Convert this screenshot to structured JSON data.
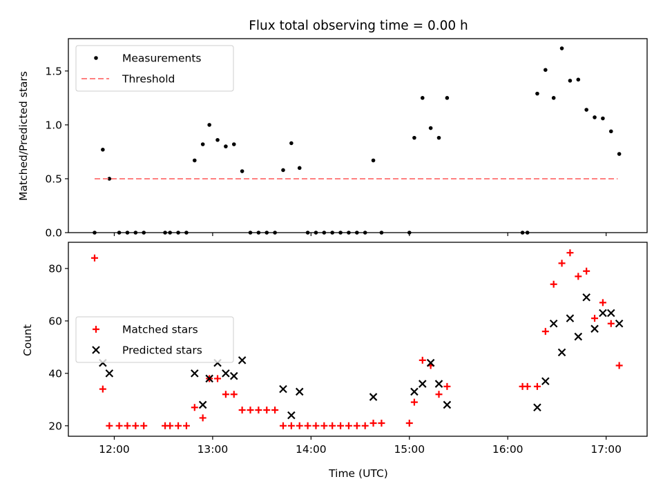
{
  "chart_data": [
    {
      "type": "scatter",
      "title": "Flux total observing time = 0.00 h",
      "xlabel": "",
      "ylabel": "Matched/Predicted stars",
      "xlim": [
        "11:32",
        "17:25"
      ],
      "ylim": [
        0,
        1.8
      ],
      "y_ticks": [
        {
          "value": 0.0,
          "label": "0.0"
        },
        {
          "value": 0.5,
          "label": "0.5"
        },
        {
          "value": 1.0,
          "label": "1.0"
        },
        {
          "value": 1.5,
          "label": "1.5"
        }
      ],
      "x_ticks": [
        {
          "value": "12:00",
          "label": ""
        },
        {
          "value": "13:00",
          "label": ""
        },
        {
          "value": "14:00",
          "label": ""
        },
        {
          "value": "15:00",
          "label": ""
        },
        {
          "value": "16:00",
          "label": ""
        },
        {
          "value": "17:00",
          "label": ""
        }
      ],
      "grid": false,
      "legend": {
        "position": "top-left",
        "entries": [
          {
            "label": "Measurements",
            "marker": "dot",
            "color": "#000000"
          },
          {
            "label": "Threshold",
            "marker": "dashed-line",
            "color": "#ff7f7f"
          }
        ]
      },
      "series": [
        {
          "name": "Measurements",
          "style": "dot",
          "color": "#000000",
          "points": [
            {
              "x": "11:48",
              "y": 0.0
            },
            {
              "x": "11:53",
              "y": 0.77
            },
            {
              "x": "11:57",
              "y": 0.5
            },
            {
              "x": "12:03",
              "y": 0.0
            },
            {
              "x": "12:08",
              "y": 0.0
            },
            {
              "x": "12:13",
              "y": 0.0
            },
            {
              "x": "12:18",
              "y": 0.0
            },
            {
              "x": "12:31",
              "y": 0.0
            },
            {
              "x": "12:34",
              "y": 0.0
            },
            {
              "x": "12:39",
              "y": 0.0
            },
            {
              "x": "12:44",
              "y": 0.0
            },
            {
              "x": "12:49",
              "y": 0.67
            },
            {
              "x": "12:54",
              "y": 0.82
            },
            {
              "x": "12:58",
              "y": 1.0
            },
            {
              "x": "13:03",
              "y": 0.86
            },
            {
              "x": "13:08",
              "y": 0.8
            },
            {
              "x": "13:13",
              "y": 0.82
            },
            {
              "x": "13:18",
              "y": 0.57
            },
            {
              "x": "13:23",
              "y": 0.0
            },
            {
              "x": "13:28",
              "y": 0.0
            },
            {
              "x": "13:33",
              "y": 0.0
            },
            {
              "x": "13:38",
              "y": 0.0
            },
            {
              "x": "13:43",
              "y": 0.58
            },
            {
              "x": "13:48",
              "y": 0.83
            },
            {
              "x": "13:53",
              "y": 0.6
            },
            {
              "x": "13:58",
              "y": 0.0
            },
            {
              "x": "14:03",
              "y": 0.0
            },
            {
              "x": "14:08",
              "y": 0.0
            },
            {
              "x": "14:13",
              "y": 0.0
            },
            {
              "x": "14:18",
              "y": 0.0
            },
            {
              "x": "14:23",
              "y": 0.0
            },
            {
              "x": "14:28",
              "y": 0.0
            },
            {
              "x": "14:33",
              "y": 0.0
            },
            {
              "x": "14:38",
              "y": 0.67
            },
            {
              "x": "14:43",
              "y": 0.0
            },
            {
              "x": "15:00",
              "y": 0.0
            },
            {
              "x": "15:03",
              "y": 0.88
            },
            {
              "x": "15:08",
              "y": 1.25
            },
            {
              "x": "15:13",
              "y": 0.97
            },
            {
              "x": "15:18",
              "y": 0.88
            },
            {
              "x": "15:23",
              "y": 1.25
            },
            {
              "x": "16:09",
              "y": 0.0
            },
            {
              "x": "16:12",
              "y": 0.0
            },
            {
              "x": "16:18",
              "y": 1.29
            },
            {
              "x": "16:23",
              "y": 1.51
            },
            {
              "x": "16:28",
              "y": 1.25
            },
            {
              "x": "16:33",
              "y": 1.71
            },
            {
              "x": "16:38",
              "y": 1.41
            },
            {
              "x": "16:43",
              "y": 1.42
            },
            {
              "x": "16:48",
              "y": 1.14
            },
            {
              "x": "16:53",
              "y": 1.07
            },
            {
              "x": "16:58",
              "y": 1.06
            },
            {
              "x": "17:03",
              "y": 0.94
            },
            {
              "x": "17:08",
              "y": 0.73
            }
          ]
        },
        {
          "name": "Threshold",
          "style": "dashed-line",
          "color": "#ff7f7f",
          "points": [
            {
              "x": "11:48",
              "y": 0.5
            },
            {
              "x": "17:07",
              "y": 0.5
            }
          ]
        }
      ]
    },
    {
      "type": "scatter",
      "title": "",
      "xlabel": "Time (UTC)",
      "ylabel": "Count",
      "xlim": [
        "11:32",
        "17:25"
      ],
      "ylim": [
        16,
        90
      ],
      "y_ticks": [
        {
          "value": 20,
          "label": "20"
        },
        {
          "value": 40,
          "label": "40"
        },
        {
          "value": 60,
          "label": "60"
        },
        {
          "value": 80,
          "label": "80"
        }
      ],
      "x_ticks": [
        {
          "value": "12:00",
          "label": "12:00"
        },
        {
          "value": "13:00",
          "label": "13:00"
        },
        {
          "value": "14:00",
          "label": "14:00"
        },
        {
          "value": "15:00",
          "label": "15:00"
        },
        {
          "value": "16:00",
          "label": "16:00"
        },
        {
          "value": "17:00",
          "label": "17:00"
        }
      ],
      "grid": false,
      "legend": {
        "position": "center-left",
        "entries": [
          {
            "label": "Matched stars",
            "marker": "plus",
            "color": "#ff0000"
          },
          {
            "label": "Predicted stars",
            "marker": "x",
            "color": "#000000"
          }
        ]
      },
      "series": [
        {
          "name": "Matched stars",
          "style": "plus",
          "color": "#ff0000",
          "points": [
            {
              "x": "11:48",
              "y": 84
            },
            {
              "x": "11:53",
              "y": 34
            },
            {
              "x": "11:57",
              "y": 20
            },
            {
              "x": "12:03",
              "y": 20
            },
            {
              "x": "12:08",
              "y": 20
            },
            {
              "x": "12:13",
              "y": 20
            },
            {
              "x": "12:18",
              "y": 20
            },
            {
              "x": "12:31",
              "y": 20
            },
            {
              "x": "12:34",
              "y": 20
            },
            {
              "x": "12:39",
              "y": 20
            },
            {
              "x": "12:44",
              "y": 20
            },
            {
              "x": "12:49",
              "y": 27
            },
            {
              "x": "12:54",
              "y": 23
            },
            {
              "x": "12:58",
              "y": 38
            },
            {
              "x": "13:03",
              "y": 38
            },
            {
              "x": "13:08",
              "y": 32
            },
            {
              "x": "13:13",
              "y": 32
            },
            {
              "x": "13:18",
              "y": 26
            },
            {
              "x": "13:23",
              "y": 26
            },
            {
              "x": "13:28",
              "y": 26
            },
            {
              "x": "13:33",
              "y": 26
            },
            {
              "x": "13:38",
              "y": 26
            },
            {
              "x": "13:43",
              "y": 20
            },
            {
              "x": "13:48",
              "y": 20
            },
            {
              "x": "13:53",
              "y": 20
            },
            {
              "x": "13:58",
              "y": 20
            },
            {
              "x": "14:03",
              "y": 20
            },
            {
              "x": "14:08",
              "y": 20
            },
            {
              "x": "14:13",
              "y": 20
            },
            {
              "x": "14:18",
              "y": 20
            },
            {
              "x": "14:23",
              "y": 20
            },
            {
              "x": "14:28",
              "y": 20
            },
            {
              "x": "14:33",
              "y": 20
            },
            {
              "x": "14:38",
              "y": 21
            },
            {
              "x": "14:43",
              "y": 21
            },
            {
              "x": "15:00",
              "y": 21
            },
            {
              "x": "15:03",
              "y": 29
            },
            {
              "x": "15:08",
              "y": 45
            },
            {
              "x": "15:13",
              "y": 43
            },
            {
              "x": "15:18",
              "y": 32
            },
            {
              "x": "15:23",
              "y": 35
            },
            {
              "x": "16:09",
              "y": 35
            },
            {
              "x": "16:12",
              "y": 35
            },
            {
              "x": "16:18",
              "y": 35
            },
            {
              "x": "16:23",
              "y": 56
            },
            {
              "x": "16:28",
              "y": 74
            },
            {
              "x": "16:33",
              "y": 82
            },
            {
              "x": "16:38",
              "y": 86
            },
            {
              "x": "16:43",
              "y": 77
            },
            {
              "x": "16:48",
              "y": 79
            },
            {
              "x": "16:53",
              "y": 61
            },
            {
              "x": "16:58",
              "y": 67
            },
            {
              "x": "17:03",
              "y": 59
            },
            {
              "x": "17:08",
              "y": 43
            }
          ]
        },
        {
          "name": "Predicted stars",
          "style": "x",
          "color": "#000000",
          "points": [
            {
              "x": "11:53",
              "y": 44
            },
            {
              "x": "11:57",
              "y": 40
            },
            {
              "x": "12:49",
              "y": 40
            },
            {
              "x": "12:54",
              "y": 28
            },
            {
              "x": "12:58",
              "y": 38
            },
            {
              "x": "13:03",
              "y": 44
            },
            {
              "x": "13:08",
              "y": 40
            },
            {
              "x": "13:13",
              "y": 39
            },
            {
              "x": "13:18",
              "y": 45
            },
            {
              "x": "13:43",
              "y": 34
            },
            {
              "x": "13:48",
              "y": 24
            },
            {
              "x": "13:53",
              "y": 33
            },
            {
              "x": "14:38",
              "y": 31
            },
            {
              "x": "15:03",
              "y": 33
            },
            {
              "x": "15:08",
              "y": 36
            },
            {
              "x": "15:13",
              "y": 44
            },
            {
              "x": "15:18",
              "y": 36
            },
            {
              "x": "15:23",
              "y": 28
            },
            {
              "x": "16:18",
              "y": 27
            },
            {
              "x": "16:23",
              "y": 37
            },
            {
              "x": "16:28",
              "y": 59
            },
            {
              "x": "16:33",
              "y": 48
            },
            {
              "x": "16:38",
              "y": 61
            },
            {
              "x": "16:43",
              "y": 54
            },
            {
              "x": "16:48",
              "y": 69
            },
            {
              "x": "16:53",
              "y": 57
            },
            {
              "x": "16:58",
              "y": 63
            },
            {
              "x": "17:03",
              "y": 63
            },
            {
              "x": "17:08",
              "y": 59
            }
          ]
        }
      ]
    }
  ]
}
